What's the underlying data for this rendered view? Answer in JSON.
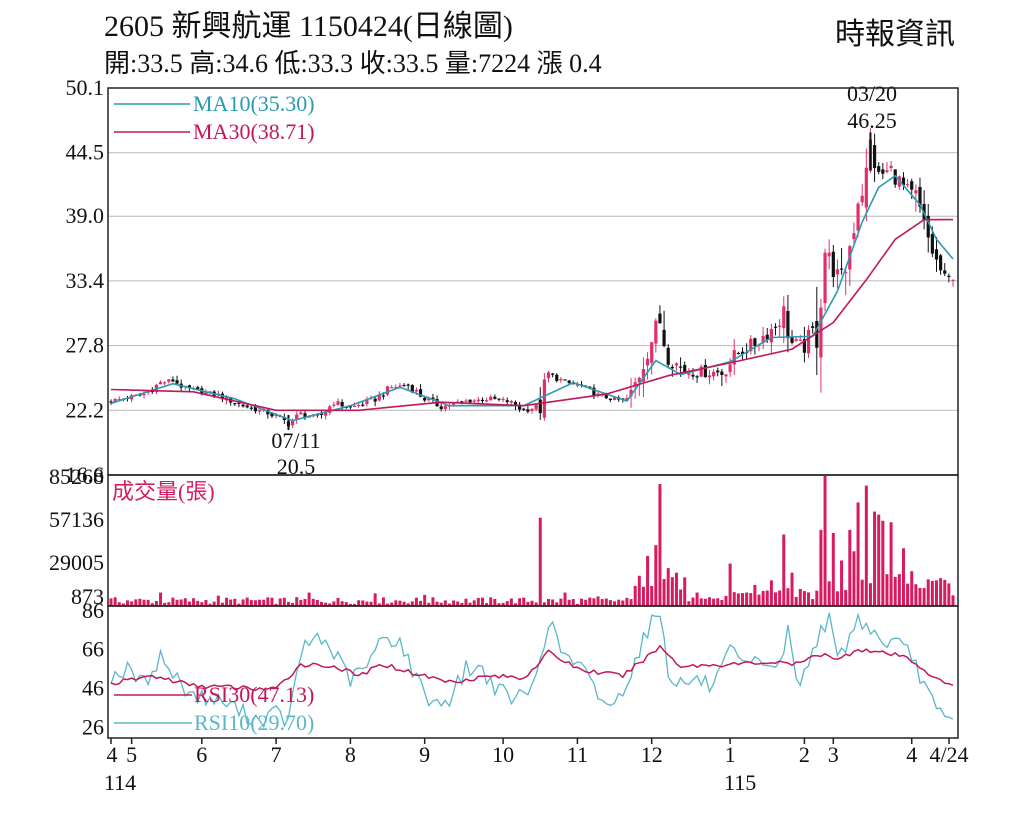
{
  "header": {
    "title": "2605  新興航運 1150424(日線圖)",
    "summary": "開:33.5 高:34.6 低:33.3 收:33.5 量:7224 漲 0.4",
    "brand": "時報資訊"
  },
  "colors": {
    "up": "#e0306a",
    "down": "#111111",
    "ma10": "#2a9bb0",
    "ma30": "#c2185b",
    "volume": "#d81b60",
    "rsi30": "#c2185b",
    "rsi10": "#5ab7c9",
    "grid": "#b8b8b8",
    "frame": "#222222"
  },
  "chart_data": {
    "type": "candlestick",
    "price_panel": {
      "yticks": [
        "50.1",
        "44.5",
        "39.0",
        "33.4",
        "27.8",
        "22.2",
        "16.6"
      ],
      "ylim": [
        16.6,
        50.1
      ],
      "legend": [
        {
          "key": "ma10",
          "label": "MA10(35.30)"
        },
        {
          "key": "ma30",
          "label": "MA30(38.71)"
        }
      ],
      "annotations": {
        "high": {
          "date_label": "03/20",
          "value": "46.25"
        },
        "low": {
          "date_label": "07/11",
          "value": "20.5"
        }
      },
      "anchors": [
        [
          0,
          23.0
        ],
        [
          8,
          23.6
        ],
        [
          12,
          24.6
        ],
        [
          15,
          24.8
        ],
        [
          18,
          24.1
        ],
        [
          26,
          23.5
        ],
        [
          32,
          22.6
        ],
        [
          38,
          22.0
        ],
        [
          43,
          21.1
        ],
        [
          46,
          21.9
        ],
        [
          50,
          21.5
        ],
        [
          54,
          22.9
        ],
        [
          58,
          22.4
        ],
        [
          64,
          23.2
        ],
        [
          68,
          24.2
        ],
        [
          72,
          24.4
        ],
        [
          76,
          23.2
        ],
        [
          80,
          22.5
        ],
        [
          86,
          23.0
        ],
        [
          92,
          23.2
        ],
        [
          96,
          23.0
        ],
        [
          100,
          22.2
        ],
        [
          104,
          22.6
        ],
        [
          106,
          25.4
        ],
        [
          110,
          24.6
        ],
        [
          114,
          24.3
        ],
        [
          118,
          23.5
        ],
        [
          124,
          23.0
        ],
        [
          126,
          23.4
        ],
        [
          130,
          27.5
        ],
        [
          133,
          30.0
        ],
        [
          135,
          26.8
        ],
        [
          139,
          25.6
        ],
        [
          144,
          25.5
        ],
        [
          148,
          25.5
        ],
        [
          152,
          27.2
        ],
        [
          156,
          28.0
        ],
        [
          160,
          29.2
        ],
        [
          163,
          30.5
        ],
        [
          165,
          28.0
        ],
        [
          168,
          27.8
        ],
        [
          171,
          29.5
        ],
        [
          173,
          36.0
        ],
        [
          175,
          34.5
        ],
        [
          177,
          33.0
        ],
        [
          179,
          36.5
        ],
        [
          181,
          40.5
        ],
        [
          183,
          42.0
        ],
        [
          184,
          45.2
        ],
        [
          186,
          42.5
        ],
        [
          189,
          43.0
        ],
        [
          192,
          41.5
        ],
        [
          195,
          40.5
        ],
        [
          197,
          38.0
        ],
        [
          200,
          35.0
        ],
        [
          202,
          33.6
        ],
        [
          204,
          33.5
        ]
      ],
      "ma10_points": [
        [
          0,
          22.8
        ],
        [
          15,
          24.5
        ],
        [
          30,
          23.2
        ],
        [
          44,
          21.3
        ],
        [
          58,
          22.6
        ],
        [
          70,
          24.2
        ],
        [
          82,
          22.6
        ],
        [
          100,
          22.6
        ],
        [
          112,
          24.6
        ],
        [
          125,
          23.0
        ],
        [
          132,
          26.5
        ],
        [
          138,
          25.3
        ],
        [
          150,
          26.4
        ],
        [
          160,
          28.5
        ],
        [
          170,
          28.6
        ],
        [
          176,
          32.5
        ],
        [
          182,
          38.5
        ],
        [
          186,
          41.5
        ],
        [
          190,
          42.5
        ],
        [
          196,
          40.0
        ],
        [
          200,
          37.0
        ],
        [
          204,
          35.3
        ]
      ],
      "ma30_points": [
        [
          0,
          24.0
        ],
        [
          20,
          23.8
        ],
        [
          40,
          22.2
        ],
        [
          60,
          22.2
        ],
        [
          80,
          22.9
        ],
        [
          100,
          22.6
        ],
        [
          120,
          23.6
        ],
        [
          135,
          25.2
        ],
        [
          150,
          26.3
        ],
        [
          165,
          27.5
        ],
        [
          175,
          29.8
        ],
        [
          183,
          33.5
        ],
        [
          190,
          37.0
        ],
        [
          197,
          38.7
        ],
        [
          204,
          38.71
        ]
      ]
    },
    "volume_panel": {
      "title": "成交量(張)",
      "yticks": [
        "85268",
        "57136",
        "29005",
        "873"
      ],
      "ylim": [
        873,
        85268
      ],
      "spikes": [
        [
          12,
          9000
        ],
        [
          26,
          7000
        ],
        [
          48,
          9000
        ],
        [
          64,
          8500
        ],
        [
          76,
          7500
        ],
        [
          104,
          58000
        ],
        [
          110,
          9000
        ],
        [
          118,
          6500
        ],
        [
          128,
          20000
        ],
        [
          130,
          33000
        ],
        [
          132,
          40000
        ],
        [
          133,
          80000
        ],
        [
          135,
          25000
        ],
        [
          137,
          22000
        ],
        [
          139,
          19000
        ],
        [
          142,
          9000
        ],
        [
          150,
          28000
        ],
        [
          156,
          14000
        ],
        [
          160,
          17000
        ],
        [
          163,
          47000
        ],
        [
          165,
          22000
        ],
        [
          168,
          10000
        ],
        [
          172,
          50000
        ],
        [
          173,
          85268
        ],
        [
          175,
          48000
        ],
        [
          177,
          30000
        ],
        [
          179,
          50000
        ],
        [
          180,
          36000
        ],
        [
          181,
          68000
        ],
        [
          183,
          79000
        ],
        [
          185,
          62000
        ],
        [
          186,
          60000
        ],
        [
          187,
          56000
        ],
        [
          189,
          55000
        ],
        [
          192,
          38000
        ],
        [
          194,
          23000
        ],
        [
          196,
          12000
        ],
        [
          200,
          17000
        ],
        [
          203,
          15000
        ],
        [
          204,
          7224
        ]
      ]
    },
    "rsi_panel": {
      "yticks": [
        "86",
        "66",
        "46",
        "26"
      ],
      "ylim": [
        20,
        88
      ],
      "legend": [
        {
          "key": "rsi30",
          "label": "RSI30(47.13)"
        },
        {
          "key": "rsi10",
          "label": "RSI10(29.70)"
        }
      ],
      "rsi10_points": [
        [
          0,
          52
        ],
        [
          4,
          55
        ],
        [
          8,
          48
        ],
        [
          12,
          62
        ],
        [
          16,
          50
        ],
        [
          20,
          42
        ],
        [
          24,
          40
        ],
        [
          28,
          38
        ],
        [
          32,
          33
        ],
        [
          36,
          29
        ],
        [
          40,
          33
        ],
        [
          43,
          28
        ],
        [
          46,
          64
        ],
        [
          50,
          73
        ],
        [
          54,
          64
        ],
        [
          58,
          50
        ],
        [
          62,
          57
        ],
        [
          66,
          72
        ],
        [
          70,
          70
        ],
        [
          74,
          50
        ],
        [
          78,
          38
        ],
        [
          82,
          40
        ],
        [
          86,
          56
        ],
        [
          90,
          55
        ],
        [
          94,
          44
        ],
        [
          98,
          40
        ],
        [
          102,
          45
        ],
        [
          106,
          80
        ],
        [
          110,
          62
        ],
        [
          114,
          56
        ],
        [
          118,
          42
        ],
        [
          122,
          36
        ],
        [
          126,
          55
        ],
        [
          130,
          76
        ],
        [
          133,
          86
        ],
        [
          135,
          54
        ],
        [
          138,
          48
        ],
        [
          142,
          50
        ],
        [
          146,
          46
        ],
        [
          150,
          64
        ],
        [
          154,
          56
        ],
        [
          158,
          60
        ],
        [
          162,
          56
        ],
        [
          164,
          76
        ],
        [
          166,
          50
        ],
        [
          168,
          52
        ],
        [
          172,
          78
        ],
        [
          174,
          80
        ],
        [
          176,
          60
        ],
        [
          179,
          72
        ],
        [
          181,
          81
        ],
        [
          184,
          77
        ],
        [
          186,
          70
        ],
        [
          190,
          69
        ],
        [
          194,
          62
        ],
        [
          197,
          48
        ],
        [
          200,
          33
        ],
        [
          202,
          30
        ],
        [
          204,
          29.7
        ]
      ],
      "rsi30_points": [
        [
          0,
          48
        ],
        [
          10,
          52
        ],
        [
          20,
          47
        ],
        [
          30,
          46
        ],
        [
          40,
          45
        ],
        [
          46,
          58
        ],
        [
          54,
          57
        ],
        [
          60,
          52
        ],
        [
          66,
          58
        ],
        [
          74,
          53
        ],
        [
          82,
          49
        ],
        [
          92,
          52
        ],
        [
          100,
          51
        ],
        [
          106,
          64
        ],
        [
          114,
          55
        ],
        [
          124,
          52
        ],
        [
          130,
          62
        ],
        [
          133,
          67
        ],
        [
          138,
          57
        ],
        [
          150,
          58
        ],
        [
          160,
          59
        ],
        [
          166,
          58
        ],
        [
          173,
          64
        ],
        [
          176,
          60
        ],
        [
          181,
          66
        ],
        [
          186,
          64
        ],
        [
          192,
          62
        ],
        [
          196,
          57
        ],
        [
          200,
          50
        ],
        [
          204,
          47.13
        ]
      ]
    },
    "x_axis": {
      "ticks": [
        {
          "label": "4",
          "index": 0
        },
        {
          "label": "5",
          "index": 5
        },
        {
          "label": "6",
          "index": 22
        },
        {
          "label": "7",
          "index": 40
        },
        {
          "label": "8",
          "index": 58
        },
        {
          "label": "9",
          "index": 76
        },
        {
          "label": "10",
          "index": 95
        },
        {
          "label": "11",
          "index": 113
        },
        {
          "label": "12",
          "index": 131
        },
        {
          "label": "1",
          "index": 150
        },
        {
          "label": "2",
          "index": 168
        },
        {
          "label": "3",
          "index": 175
        },
        {
          "label": "4",
          "index": 194
        },
        {
          "label": "4/24",
          "index": 204
        }
      ],
      "year_labels": [
        {
          "label": "114",
          "index": 0
        },
        {
          "label": "115",
          "index": 150
        }
      ]
    }
  }
}
